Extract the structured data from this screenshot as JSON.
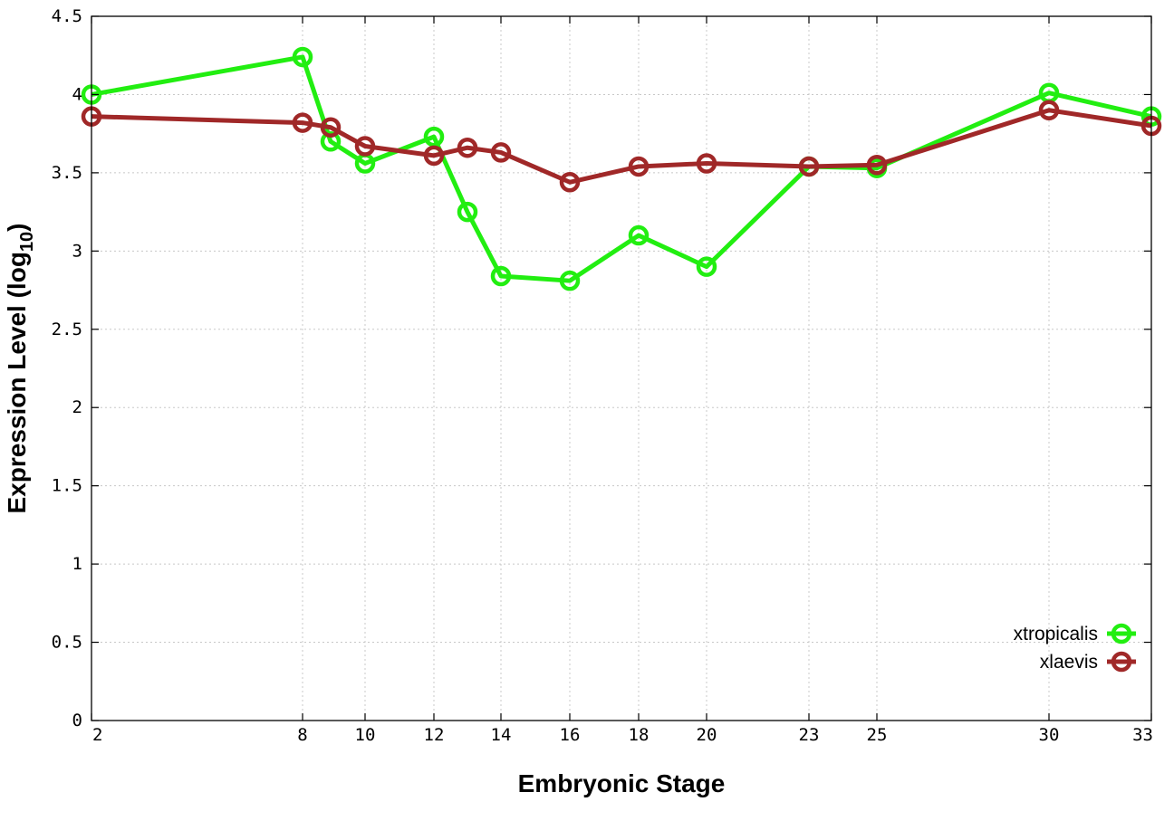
{
  "chart_data": {
    "type": "line",
    "title": "",
    "xlabel": "Embryonic Stage",
    "ylabel": "Expression Level (log",
    "ylabel_sub": "10",
    "ylabel_tail": ")",
    "x_ticks": [
      2,
      8,
      10,
      12,
      14,
      16,
      18,
      20,
      23,
      25,
      30,
      33
    ],
    "x_tick_labels": [
      "2",
      "8",
      "10",
      "12",
      "14",
      "16",
      "18",
      "20",
      "23",
      "25",
      "30",
      "33"
    ],
    "y_ticks": [
      0,
      0.5,
      1,
      1.5,
      2,
      2.5,
      3,
      3.5,
      4,
      4.5
    ],
    "y_tick_labels": [
      "0",
      "0.5",
      "1",
      "1.5",
      "2",
      "2.5",
      "3",
      "3.5",
      "4",
      "4.5"
    ],
    "ylim": [
      0,
      4.5
    ],
    "grid": true,
    "legend_position": "bottom-right",
    "categories": [
      "2",
      "8",
      "9",
      "10",
      "12",
      "13",
      "14",
      "16",
      "18",
      "20",
      "23",
      "25",
      "30",
      "33"
    ],
    "series": [
      {
        "name": "xtropicalis",
        "color": "#22ee11",
        "values": [
          4.0,
          4.24,
          3.7,
          3.56,
          3.73,
          3.25,
          2.84,
          2.81,
          3.1,
          2.9,
          3.54,
          3.53,
          4.01,
          3.86
        ]
      },
      {
        "name": "xlaevis",
        "color": "#a02828",
        "values": [
          3.86,
          3.82,
          3.79,
          3.67,
          3.61,
          3.66,
          3.63,
          3.44,
          3.54,
          3.56,
          3.54,
          3.55,
          3.9,
          3.8
        ]
      }
    ]
  }
}
